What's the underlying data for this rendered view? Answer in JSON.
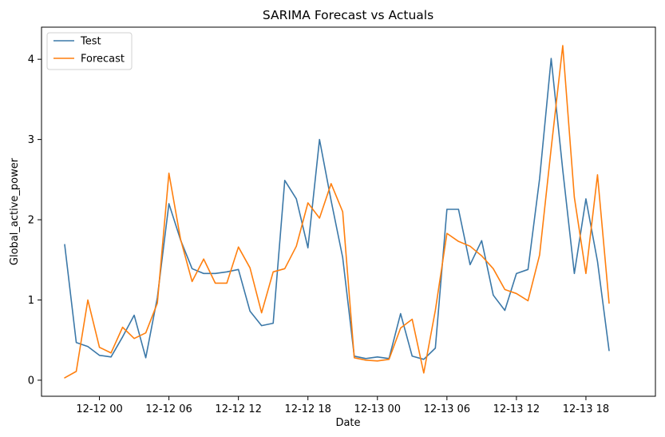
{
  "chart_data": {
    "type": "line",
    "title": "SARIMA Forecast vs Actuals",
    "xlabel": "Date",
    "ylabel": "Global_active_power",
    "x_axis_type": "datetime",
    "x_start": "2006-12-11 21:00",
    "x_step_hours": 1,
    "xlim": [
      "2006-12-11 19:00",
      "2006-12-14 00:00"
    ],
    "ylim": [
      -0.2,
      4.4
    ],
    "x_ticks": [
      "12-12 00",
      "12-12 06",
      "12-12 12",
      "12-12 18",
      "12-13 00",
      "12-13 06",
      "12-13 12",
      "12-13 18"
    ],
    "y_ticks": [
      0,
      1,
      2,
      3,
      4
    ],
    "grid": false,
    "legend_position": "top-left",
    "series": [
      {
        "name": "Test",
        "color": "#3b78a8",
        "values": [
          1.69,
          0.47,
          0.42,
          0.31,
          0.29,
          0.54,
          0.81,
          0.28,
          1.03,
          2.2,
          1.75,
          1.39,
          1.33,
          1.33,
          1.35,
          1.38,
          0.86,
          0.68,
          0.71,
          2.49,
          2.26,
          1.65,
          3.0,
          2.24,
          1.53,
          0.3,
          0.27,
          0.29,
          0.27,
          0.83,
          0.3,
          0.26,
          0.4,
          2.13,
          2.13,
          1.44,
          1.74,
          1.06,
          0.87,
          1.33,
          1.38,
          2.51,
          4.01,
          2.62,
          1.33,
          2.26,
          1.48,
          0.37
        ]
      },
      {
        "name": "Forecast",
        "color": "#ff7f0e",
        "values": [
          0.03,
          0.11,
          1.0,
          0.41,
          0.34,
          0.66,
          0.52,
          0.59,
          0.96,
          2.58,
          1.76,
          1.23,
          1.51,
          1.21,
          1.21,
          1.66,
          1.4,
          0.84,
          1.35,
          1.39,
          1.67,
          2.21,
          2.02,
          2.45,
          2.1,
          0.28,
          0.25,
          0.24,
          0.26,
          0.65,
          0.76,
          0.09,
          0.87,
          1.83,
          1.73,
          1.67,
          1.55,
          1.39,
          1.13,
          1.08,
          0.99,
          1.56,
          2.89,
          4.17,
          2.28,
          1.33,
          2.56,
          0.96
        ]
      }
    ]
  }
}
